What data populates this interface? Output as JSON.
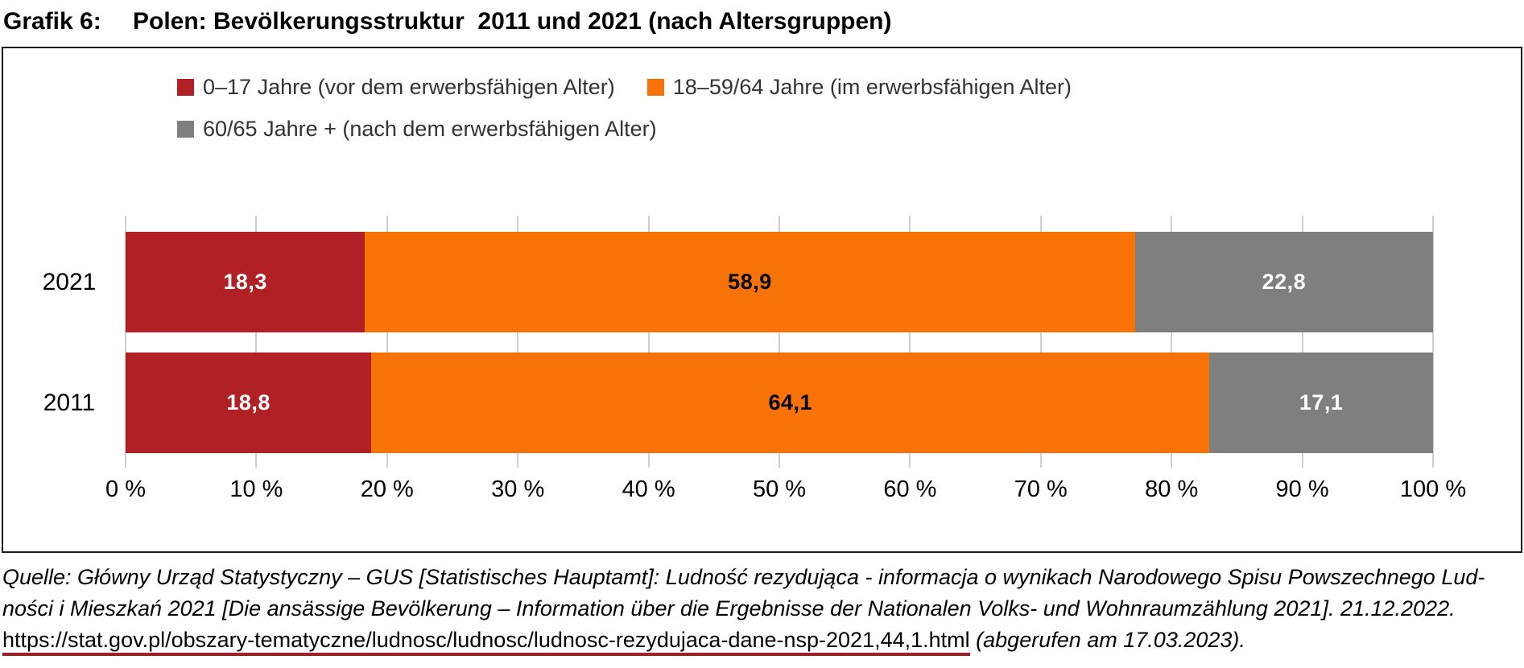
{
  "title": {
    "label": "Grafik 6:",
    "text": "Polen: Bevölkerungsstruktur  2011 und 2021 (nach Altersgruppen)"
  },
  "colors": {
    "red": "#b02025",
    "orange": "#f87307",
    "gray": "#7f7f7f",
    "grid": "#cfcfcf",
    "panel_border": "#1c1c1c",
    "link_underline": "#a51d22"
  },
  "legend": [
    {
      "label": "0–17 Jahre (vor dem erwerbsfähigen Alter)",
      "color": "#b02025"
    },
    {
      "label": "18–59/64 Jahre (im erwerbsfähigen Alter)",
      "color": "#f87307"
    },
    {
      "label": "60/65 Jahre + (nach dem erwerbsfähigen Alter)",
      "color": "#7f7f7f"
    }
  ],
  "chart_data": {
    "type": "bar",
    "orientation": "horizontal",
    "stacked": true,
    "title": "Polen: Bevölkerungsstruktur 2011 und 2021 (nach Altersgruppen)",
    "categories": [
      "2021",
      "2011"
    ],
    "series": [
      {
        "name": "0–17 Jahre (vor dem erwerbsfähigen Alter)",
        "values": [
          18.3,
          18.8
        ],
        "color": "#b02025",
        "label_color": "#ffffff"
      },
      {
        "name": "18–59/64 Jahre (im erwerbsfähigen Alter)",
        "values": [
          58.9,
          64.1
        ],
        "color": "#f87307",
        "label_color": "#000000"
      },
      {
        "name": "60/65 Jahre + (nach dem erwerbsfähigen Alter)",
        "values": [
          22.8,
          17.1
        ],
        "color": "#7f7f7f",
        "label_color": "#ffffff"
      }
    ],
    "value_labels": [
      [
        "18,3",
        "58,9",
        "22,8"
      ],
      [
        "18,8",
        "64,1",
        "17,1"
      ]
    ],
    "x_ticks": [
      "0 %",
      "10 %",
      "20 %",
      "30 %",
      "40 %",
      "50 %",
      "60 %",
      "70 %",
      "80 %",
      "90 %",
      "100 %"
    ],
    "xlabel": "",
    "ylabel": "",
    "xlim": [
      0,
      100
    ],
    "grid": true,
    "legend_position": "top"
  },
  "source": {
    "line1": "Quelle: Główny Urząd Statystyczny – GUS [Statistisches Hauptamt]: Ludność rezydująca - informacja o wynikach Narodowego Spisu Powszechnego Lud-",
    "line2": "ności i Mieszkań 2021 [Die ansässige Bevölkerung – Information über die Ergebnisse der Nationalen Volks- und Wohnraumzählung 2021]. 21.12.2022.",
    "url": "https://stat.gov.pl/obszary-tematyczne/ludnosc/ludnosc/ludnosc-rezydujaca-dane-nsp-2021,44,1.html",
    "accessed": " (abgerufen am 17.03.2023)."
  }
}
